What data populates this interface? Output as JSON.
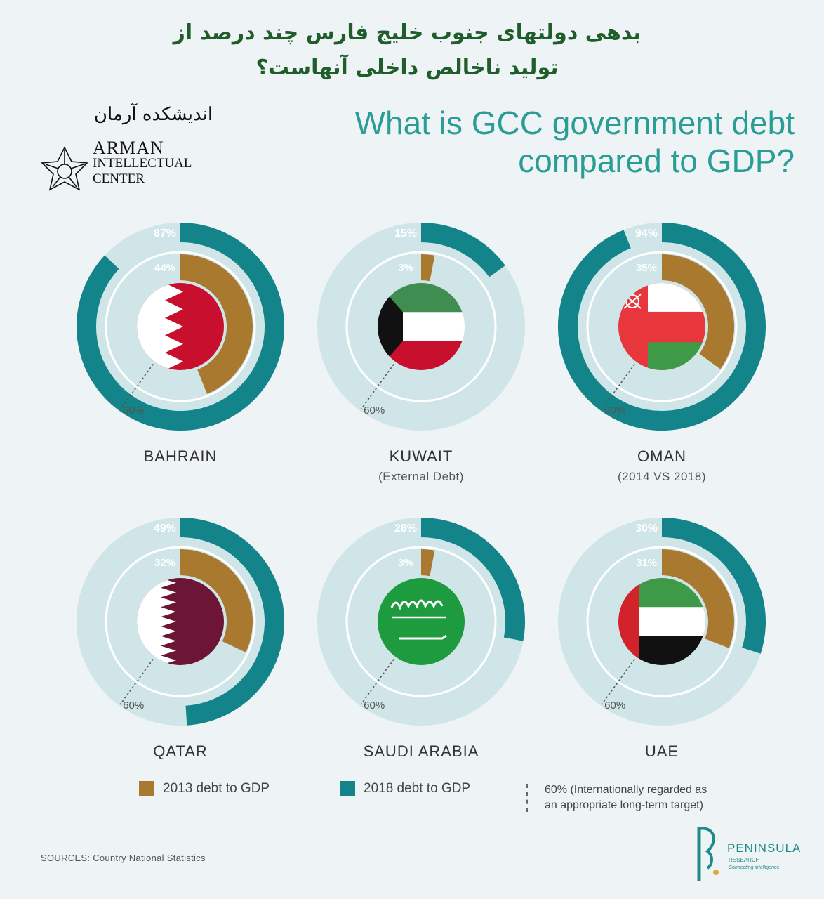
{
  "header": {
    "persian_title_line1": "بدهی دولتهای جنوب خلیج فارس چند درصد از",
    "persian_title_line2": "تولید ناخالص داخلی آنهاست؟",
    "title_line1": "What is GCC government debt",
    "title_line2": "compared to GDP?"
  },
  "logo": {
    "persian": "اندیشکده آرمان",
    "line1": "ARMAN",
    "line2": "INTELLECTUAL",
    "line3": "CENTER"
  },
  "colors": {
    "debt_2013": "#a8792f",
    "debt_2018": "#13858a",
    "track": "#cfe5e7",
    "title": "#2a9d94",
    "persian_title": "#1f5e2b"
  },
  "chart_data": {
    "type": "pie",
    "reference": {
      "value": 60,
      "label": "60%"
    },
    "series_names": [
      "2013 debt to GDP",
      "2018 debt to GDP"
    ],
    "countries": [
      {
        "name": "BAHRAIN",
        "subtitle": "",
        "flag": "bahrain",
        "debt_2013": 44,
        "debt_2018": 87,
        "label_2013": "44%",
        "label_2018": "87%"
      },
      {
        "name": "KUWAIT",
        "subtitle": "(External Debt)",
        "flag": "kuwait",
        "debt_2013": 3,
        "debt_2018": 15,
        "label_2013": "3%",
        "label_2018": "15%"
      },
      {
        "name": "OMAN",
        "subtitle": "(2014 VS 2018)",
        "flag": "oman",
        "debt_2013": 35,
        "debt_2018": 94,
        "label_2013": "35%",
        "label_2018": "94%"
      },
      {
        "name": "QATAR",
        "subtitle": "",
        "flag": "qatar",
        "debt_2013": 32,
        "debt_2018": 49,
        "label_2013": "32%",
        "label_2018": "49%"
      },
      {
        "name": "SAUDI ARABIA",
        "subtitle": "",
        "flag": "saudi-arabia",
        "debt_2013": 3,
        "debt_2018": 28,
        "label_2013": "3%",
        "label_2018": "28%"
      },
      {
        "name": "UAE",
        "subtitle": "",
        "flag": "uae",
        "debt_2013": 31,
        "debt_2018": 30,
        "label_2013": "31%",
        "label_2018": "30%"
      }
    ]
  },
  "legend": {
    "item_2013": "2013 debt to GDP",
    "item_2018": "2018 debt to GDP",
    "ref_line1": "60% (Internationally regarded as",
    "ref_line2": "an appropriate long-term target)"
  },
  "footer": {
    "sources": "SOURCES: Country National Statistics",
    "brand_name": "PENINSULA",
    "brand_sub": "RESEARCH",
    "brand_tagline": "Connecting intelligence."
  }
}
